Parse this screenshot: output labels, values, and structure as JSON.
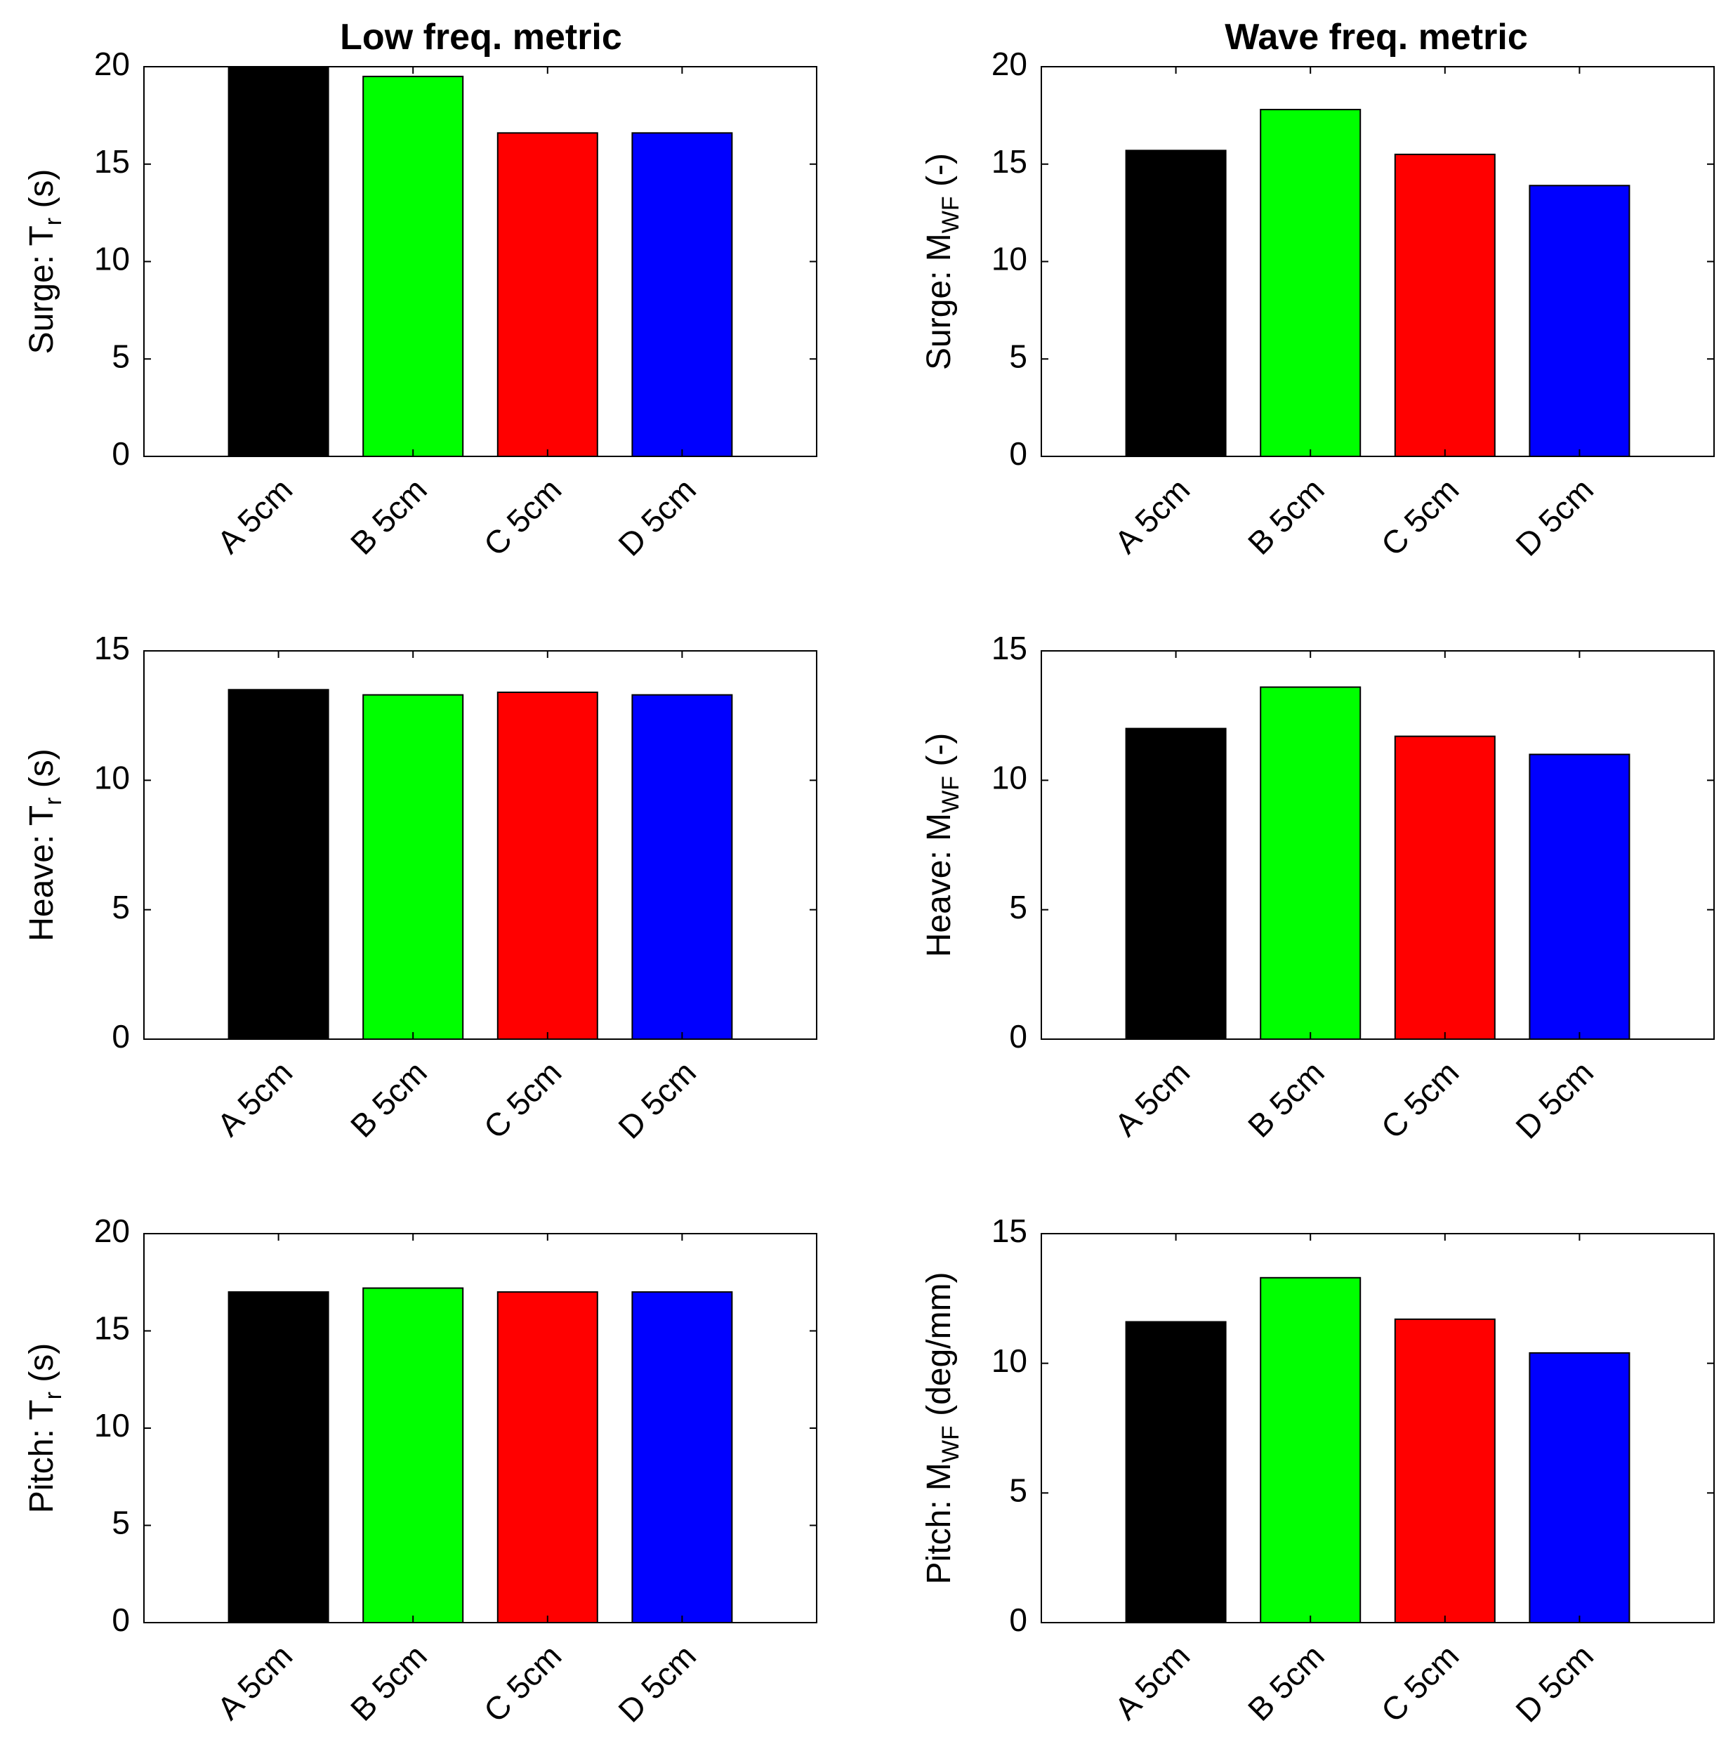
{
  "column_titles": [
    "Low freq. metric",
    "Wave freq. metric"
  ],
  "chart_data": [
    {
      "type": "bar",
      "id": "surge-low",
      "categories": [
        "A 5cm",
        "B 5cm",
        "C 5cm",
        "D 5cm"
      ],
      "values": [
        20.0,
        19.5,
        16.6,
        16.6
      ],
      "colors": [
        "#000000",
        "#00ff00",
        "#ff0000",
        "#0000ff"
      ],
      "ylabel": {
        "prefix": "Surge: T",
        "sub": "r",
        "suffix": " (s)"
      },
      "ylim": [
        0,
        20
      ],
      "yticks": [
        0,
        5,
        10,
        15,
        20
      ],
      "ytick_labels": [
        "0",
        "5",
        "10",
        "15",
        "20"
      ]
    },
    {
      "type": "bar",
      "id": "surge-wave",
      "categories": [
        "A 5cm",
        "B 5cm",
        "C 5cm",
        "D 5cm"
      ],
      "values": [
        15.7,
        17.8,
        15.5,
        13.9
      ],
      "colors": [
        "#000000",
        "#00ff00",
        "#ff0000",
        "#0000ff"
      ],
      "ylabel": {
        "prefix": "Surge: M",
        "sub": "WF",
        "suffix": " (-)"
      },
      "ylim": [
        0,
        20
      ],
      "yticks": [
        0,
        5,
        10,
        15,
        20
      ],
      "ytick_labels": [
        "0",
        "5",
        "10",
        "15",
        "20"
      ]
    },
    {
      "type": "bar",
      "id": "heave-low",
      "categories": [
        "A 5cm",
        "B 5cm",
        "C 5cm",
        "D 5cm"
      ],
      "values": [
        13.5,
        13.3,
        13.4,
        13.3
      ],
      "colors": [
        "#000000",
        "#00ff00",
        "#ff0000",
        "#0000ff"
      ],
      "ylabel": {
        "prefix": "Heave: T",
        "sub": "r",
        "suffix": " (s)"
      },
      "ylim": [
        0,
        15
      ],
      "yticks": [
        0,
        5,
        10,
        15
      ],
      "ytick_labels": [
        "0",
        "5",
        "10",
        "15"
      ]
    },
    {
      "type": "bar",
      "id": "heave-wave",
      "categories": [
        "A 5cm",
        "B 5cm",
        "C 5cm",
        "D 5cm"
      ],
      "values": [
        12.0,
        13.6,
        11.7,
        11.0
      ],
      "colors": [
        "#000000",
        "#00ff00",
        "#ff0000",
        "#0000ff"
      ],
      "ylabel": {
        "prefix": "Heave: M",
        "sub": "WF",
        "suffix": " (-)"
      },
      "ylim": [
        0,
        15
      ],
      "yticks": [
        0,
        5,
        10,
        15
      ],
      "ytick_labels": [
        "0",
        "5",
        "10",
        "15"
      ]
    },
    {
      "type": "bar",
      "id": "pitch-low",
      "categories": [
        "A 5cm",
        "B 5cm",
        "C 5cm",
        "D 5cm"
      ],
      "values": [
        17.0,
        17.2,
        17.0,
        17.0
      ],
      "colors": [
        "#000000",
        "#00ff00",
        "#ff0000",
        "#0000ff"
      ],
      "ylabel": {
        "prefix": "Pitch: T",
        "sub": "r",
        "suffix": " (s)"
      },
      "ylim": [
        0,
        20
      ],
      "yticks": [
        0,
        5,
        10,
        15,
        20
      ],
      "ytick_labels": [
        "0",
        "5",
        "10",
        "15",
        "20"
      ]
    },
    {
      "type": "bar",
      "id": "pitch-wave",
      "categories": [
        "A 5cm",
        "B 5cm",
        "C 5cm",
        "D 5cm"
      ],
      "values": [
        11.6,
        13.3,
        11.7,
        10.4
      ],
      "colors": [
        "#000000",
        "#00ff00",
        "#ff0000",
        "#0000ff"
      ],
      "ylabel": {
        "prefix": "Pitch: M",
        "sub": "WF",
        "suffix": " (deg/mm)"
      },
      "ylim": [
        0,
        15
      ],
      "yticks": [
        0,
        5,
        10,
        15
      ],
      "ytick_labels": [
        "0",
        "5",
        "10",
        "15"
      ]
    }
  ]
}
